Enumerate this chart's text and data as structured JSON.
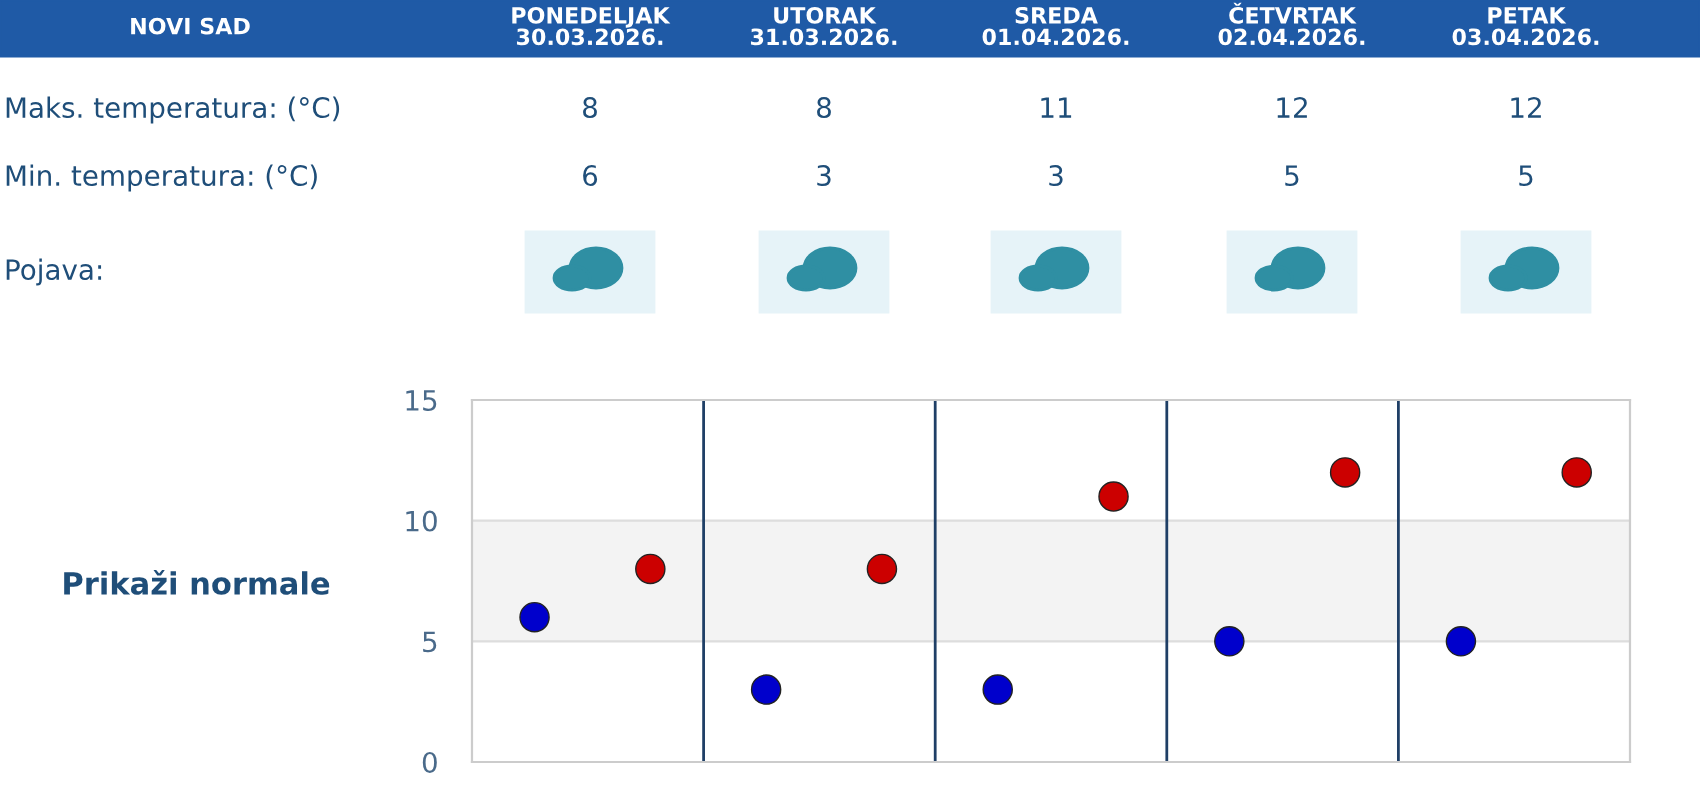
{
  "chart_data": [
    {
      "type": "other",
      "title": "NOVI SAD",
      "categories": [
        "PONEDELJAK\n30.03.2026.",
        "UTORAK\n31.03.2026.",
        "SREDA\n01.04.2026.",
        "ČETVRTAK\n02.04.2026.",
        "PETAK\n03.04.2026."
      ],
      "series": [
        {
          "name": "Maks. temperatura: (°C)",
          "values": [
            8,
            8,
            11,
            12,
            12
          ]
        },
        {
          "name": "Min. temperatura: (°C)",
          "values": [
            6,
            3,
            3,
            5,
            5
          ]
        }
      ],
      "data_labels": true,
      "annotations": [
        "Pojava:"
      ]
    },
    {
      "type": "scatter",
      "categories": [
        null,
        null,
        null,
        null,
        null
      ],
      "series": [
        {
          "color": "#0000cc",
          "values": [
            6,
            3,
            3,
            5,
            5
          ]
        },
        {
          "color": "#cc0000",
          "values": [
            8,
            8,
            11,
            12,
            12
          ]
        }
      ],
      "ylim": [
        0,
        15
      ],
      "yticks": [
        0,
        5,
        10,
        15
      ],
      "grid": "y",
      "tick_labels": "y",
      "marker": "circle",
      "bands": [
        {
          "axis": "y",
          "from": 5,
          "to": 10,
          "color": "#f3f3f3"
        }
      ],
      "annotations": [
        "Prikaži normale"
      ]
    }
  ]
}
